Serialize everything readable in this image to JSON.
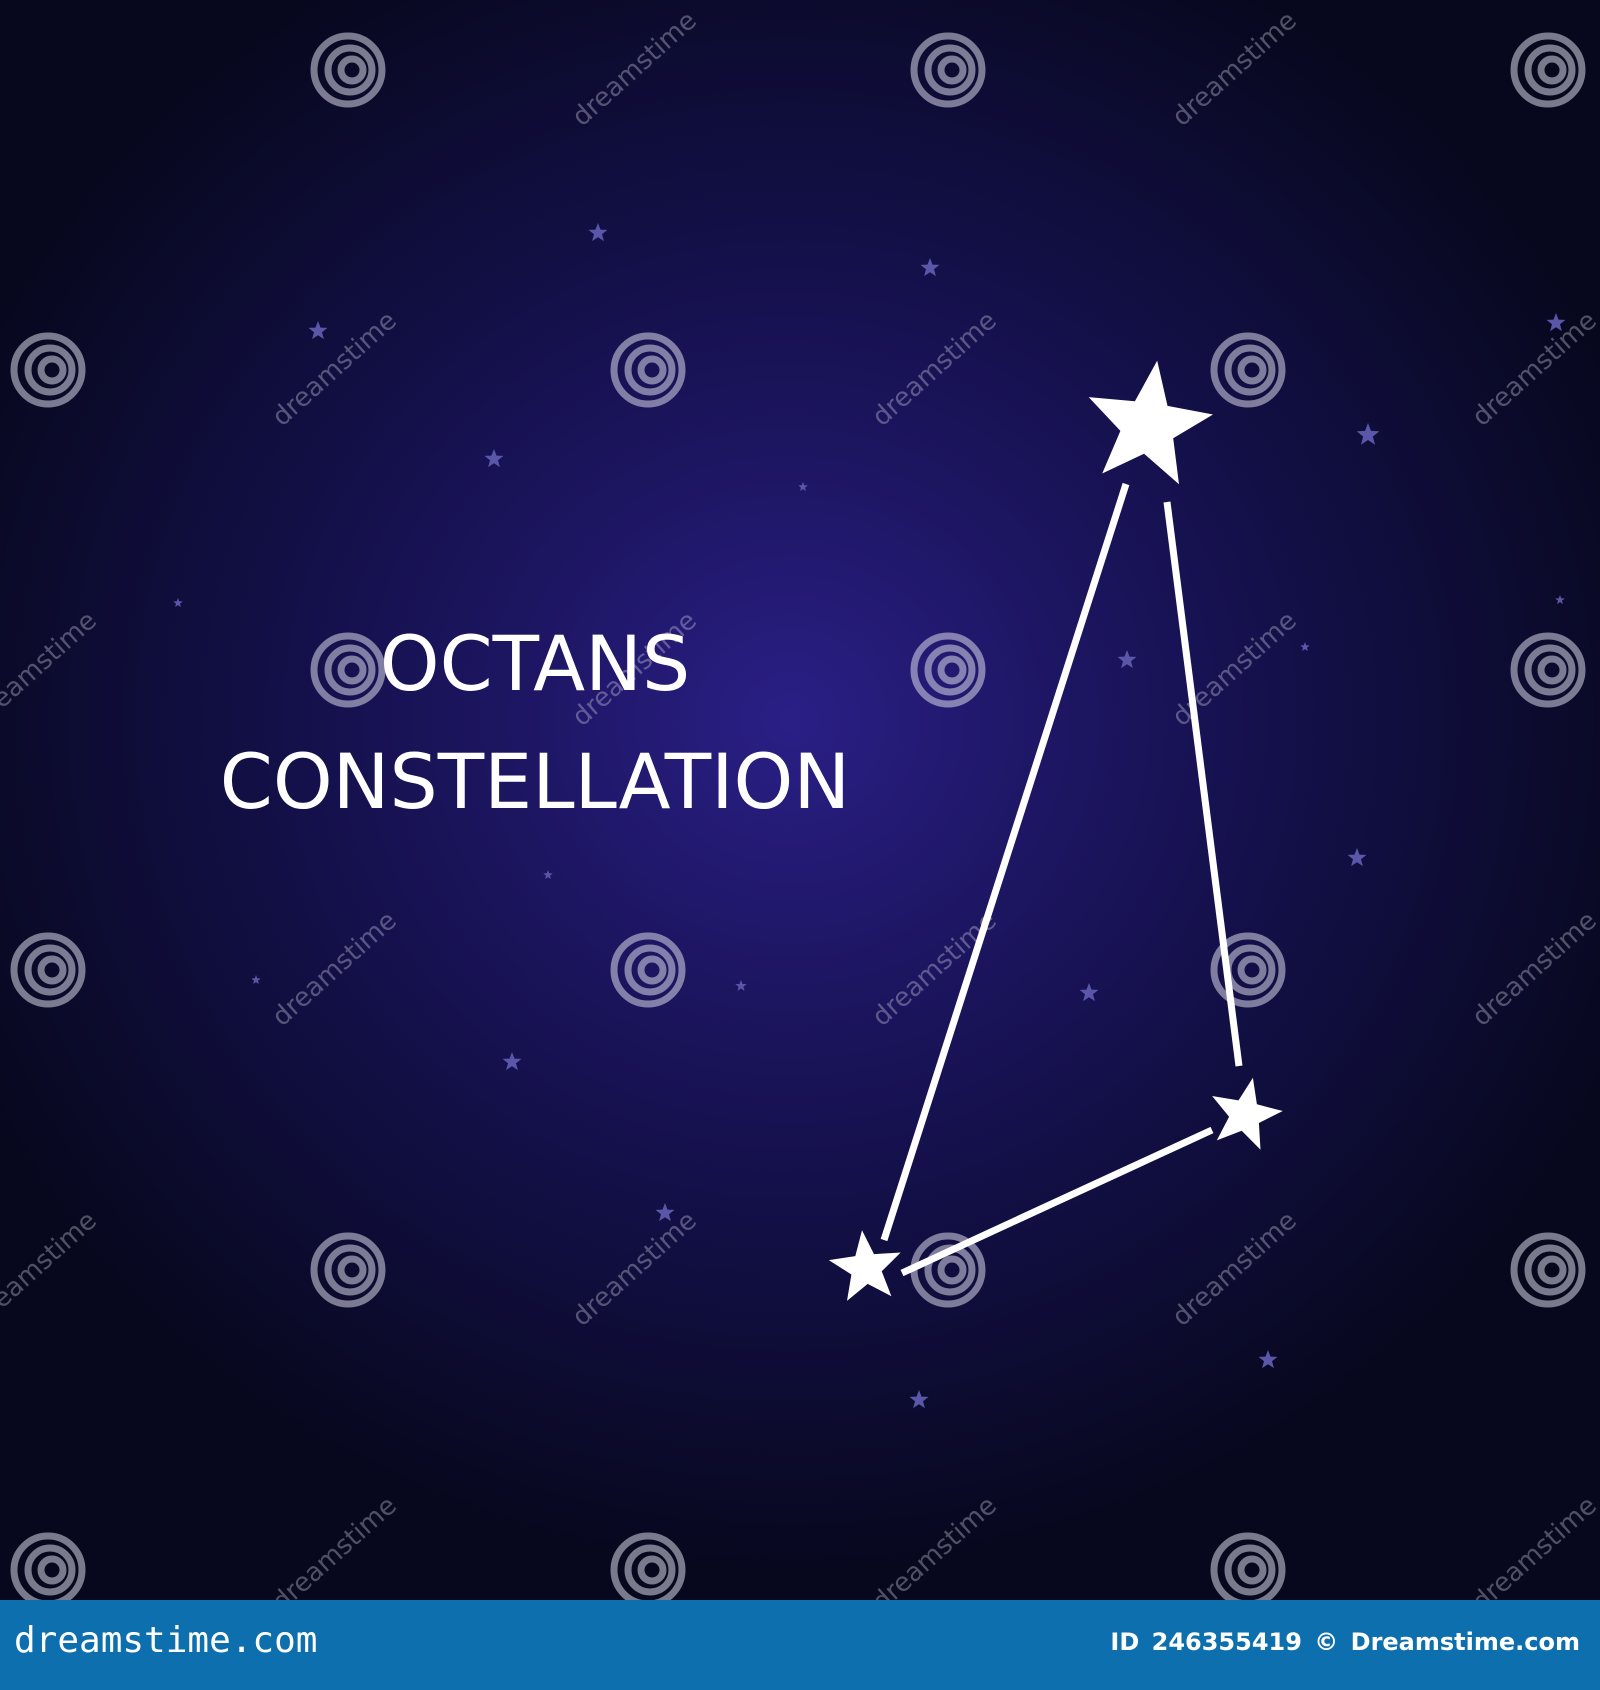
{
  "artwork": {
    "title_lines": [
      "OCTANS",
      "CONSTELLATION"
    ],
    "colors": {
      "background_center": "#2a1f86",
      "background_edge": "#07071e",
      "constellation": "#ffffff",
      "faint_stars": "#5a57a8",
      "footer_bar": "#0e6fae"
    },
    "constellation_stars": 3,
    "constellation_segments": 3
  },
  "watermark": {
    "text": "dreamstime",
    "icon": "spiral-logo-icon"
  },
  "footer": {
    "site": "dreamstime.com",
    "id_label": "ID",
    "id_value": "246355419",
    "copyright_symbol": "©",
    "brand": "Dreamstime.com"
  }
}
